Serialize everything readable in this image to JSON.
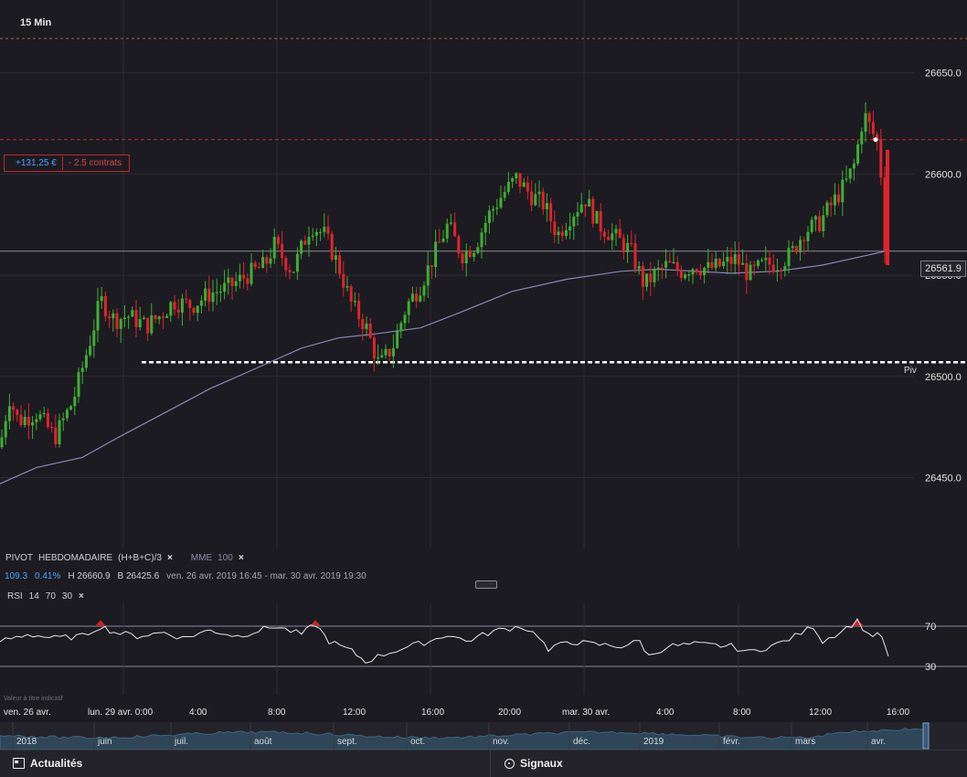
{
  "header": {
    "timeframe": "15 Min"
  },
  "position": {
    "gain": "+131,25 €",
    "contracts": "- 2.5 contrats"
  },
  "last_price_tag": "26561.9",
  "pivot_label": "Piv",
  "indicators": {
    "pivot_name": "PIVOT",
    "pivot_type": "HEBDOMADAIRE",
    "pivot_formula": "(H+B+C)/3",
    "ma_name": "MME",
    "ma_period": "100",
    "close_symbol": "×",
    "values": {
      "change_pts": "109.3",
      "change_pct": "0.41%",
      "high": "H 26660.9",
      "low": "B 26425.6",
      "range": "ven. 26 avr. 2019 16:45 - mar. 30 avr. 2019 19:30"
    }
  },
  "rsi": {
    "name": "RSI",
    "period": "14",
    "upper": "70",
    "lower": "30",
    "value_hint": "Valeur à titre indicatif"
  },
  "time_axis": [
    "ven. 26 avr.",
    "lun. 29 avr. 0:00",
    "4:00",
    "8:00",
    "12:00",
    "16:00",
    "20:00",
    "mar. 30 avr.",
    "4:00",
    "8:00",
    "12:00",
    "16:00"
  ],
  "navigator_axis": [
    "2018",
    "juin",
    "juil.",
    "août",
    "sept.",
    "oct.",
    "nov.",
    "déc.",
    "2019",
    "févr.",
    "mars",
    "avr."
  ],
  "bottom_tabs": {
    "news": "Actualités",
    "signals": "Signaux"
  },
  "colors": {
    "bull": "#3fae34",
    "bear": "#e0242a",
    "ma": "#8c84b8",
    "pivot": "#ffffff",
    "background": "#1c1b21"
  },
  "chart_data": {
    "type": "candlestick",
    "title": "",
    "ylim": [
      26415,
      26686
    ],
    "y_ticks": [
      26650.0,
      26600.0,
      26550.0,
      26500.0,
      26450.0
    ],
    "y_tick_labels": [
      "26650.0",
      "26600.0",
      "26550.0",
      "26500.0",
      "26450.0"
    ],
    "last_price": 26561.9,
    "position_entry_price": 26617,
    "pivot_level": 26507,
    "upper_dashed_level": 26667,
    "moving_average": {
      "name": "MME 100",
      "points": [
        [
          0,
          26447
        ],
        [
          40,
          26455
        ],
        [
          90,
          26460
        ],
        [
          130,
          26470
        ],
        [
          180,
          26482
        ],
        [
          230,
          26494
        ],
        [
          280,
          26504
        ],
        [
          330,
          26514
        ],
        [
          370,
          26519
        ],
        [
          410,
          26521
        ],
        [
          460,
          26524
        ],
        [
          500,
          26531
        ],
        [
          560,
          26542
        ],
        [
          620,
          26548
        ],
        [
          680,
          26552
        ],
        [
          720,
          26553
        ],
        [
          760,
          26552
        ],
        [
          800,
          26551
        ],
        [
          850,
          26552
        ],
        [
          900,
          26555
        ],
        [
          940,
          26559
        ],
        [
          970,
          26562
        ]
      ]
    },
    "candles_key": "anchor points (candle index, close); OHLC series generated from these",
    "close_path": [
      [
        0,
        26465
      ],
      [
        10,
        26490
      ],
      [
        20,
        26478
      ],
      [
        40,
        26482
      ],
      [
        60,
        26470
      ],
      [
        80,
        26488
      ],
      [
        100,
        26520
      ],
      [
        110,
        26538
      ],
      [
        125,
        26528
      ],
      [
        140,
        26530
      ],
      [
        160,
        26525
      ],
      [
        175,
        26530
      ],
      [
        190,
        26537
      ],
      [
        210,
        26535
      ],
      [
        230,
        26541
      ],
      [
        250,
        26544
      ],
      [
        270,
        26550
      ],
      [
        290,
        26555
      ],
      [
        300,
        26565
      ],
      [
        320,
        26552
      ],
      [
        340,
        26575
      ],
      [
        355,
        26570
      ],
      [
        370,
        26555
      ],
      [
        385,
        26535
      ],
      [
        400,
        26525
      ],
      [
        415,
        26505
      ],
      [
        430,
        26515
      ],
      [
        445,
        26535
      ],
      [
        460,
        26545
      ],
      [
        475,
        26560
      ],
      [
        490,
        26575
      ],
      [
        505,
        26560
      ],
      [
        520,
        26565
      ],
      [
        535,
        26580
      ],
      [
        550,
        26590
      ],
      [
        565,
        26598
      ],
      [
        580,
        26590
      ],
      [
        595,
        26585
      ],
      [
        610,
        26570
      ],
      [
        625,
        26580
      ],
      [
        640,
        26588
      ],
      [
        655,
        26575
      ],
      [
        670,
        26570
      ],
      [
        690,
        26562
      ],
      [
        705,
        26545
      ],
      [
        715,
        26550
      ],
      [
        730,
        26555
      ],
      [
        745,
        26552
      ],
      [
        760,
        26555
      ],
      [
        775,
        26553
      ],
      [
        790,
        26555
      ],
      [
        805,
        26558
      ],
      [
        820,
        26550
      ],
      [
        835,
        26555
      ],
      [
        850,
        26556
      ],
      [
        865,
        26560
      ],
      [
        880,
        26572
      ],
      [
        895,
        26575
      ],
      [
        910,
        26585
      ],
      [
        925,
        26595
      ],
      [
        935,
        26605
      ],
      [
        945,
        26630
      ],
      [
        955,
        26620
      ],
      [
        962,
        26615
      ],
      [
        970,
        26550
      ]
    ],
    "rsi_ylim": [
      0,
      100
    ],
    "rsi_levels": [
      70,
      30
    ],
    "rsi_path": [
      [
        0,
        55
      ],
      [
        30,
        62
      ],
      [
        60,
        58
      ],
      [
        90,
        60
      ],
      [
        110,
        70
      ],
      [
        125,
        64
      ],
      [
        150,
        60
      ],
      [
        180,
        64
      ],
      [
        200,
        58
      ],
      [
        230,
        66
      ],
      [
        260,
        60
      ],
      [
        300,
        70
      ],
      [
        330,
        62
      ],
      [
        345,
        72
      ],
      [
        360,
        55
      ],
      [
        385,
        45
      ],
      [
        400,
        35
      ],
      [
        420,
        42
      ],
      [
        440,
        48
      ],
      [
        470,
        55
      ],
      [
        490,
        62
      ],
      [
        510,
        55
      ],
      [
        540,
        65
      ],
      [
        570,
        70
      ],
      [
        590,
        60
      ],
      [
        600,
        45
      ],
      [
        620,
        55
      ],
      [
        650,
        52
      ],
      [
        680,
        50
      ],
      [
        700,
        55
      ],
      [
        710,
        40
      ],
      [
        730,
        50
      ],
      [
        760,
        52
      ],
      [
        800,
        50
      ],
      [
        820,
        44
      ],
      [
        850,
        52
      ],
      [
        870,
        60
      ],
      [
        890,
        70
      ],
      [
        900,
        55
      ],
      [
        920,
        65
      ],
      [
        938,
        75
      ],
      [
        950,
        62
      ],
      [
        965,
        60
      ],
      [
        972,
        40
      ]
    ]
  }
}
